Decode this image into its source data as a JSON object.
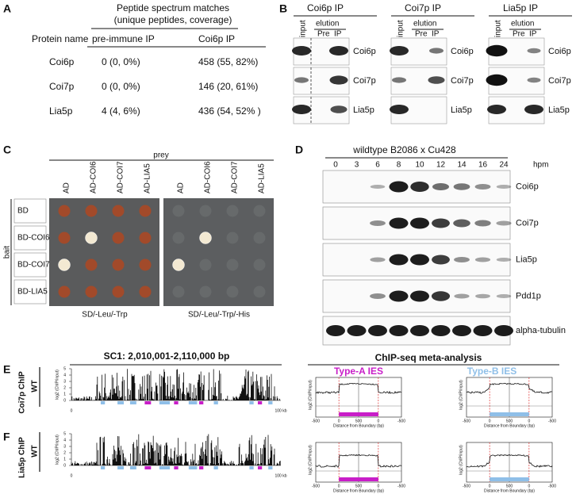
{
  "panel_a": {
    "label": "A",
    "header": "Peptide spectrum matches",
    "subheader": "(unique peptides, coverage)",
    "columns": [
      "Protein name",
      "pre-immune IP",
      "Coi6p IP"
    ],
    "rows": [
      [
        "Coi6p",
        "0 (0, 0%)",
        "458 (55, 82%)"
      ],
      [
        "Coi7p",
        "0 (0, 0%)",
        "146 (20, 61%)"
      ],
      [
        "Lia5p",
        "4 (4, 6%)",
        "436 (54, 52% )"
      ]
    ]
  },
  "panel_b": {
    "label": "B",
    "blots": [
      "Coi6p IP",
      "Coi7p IP",
      "Lia5p IP"
    ],
    "lanes": [
      "input",
      "elution",
      "Pre",
      "IP"
    ],
    "proteins": [
      "Coi6p",
      "Coi7p",
      "Lia5p"
    ]
  },
  "panel_c": {
    "label": "C",
    "prey": "prey",
    "bait": "bait",
    "columns": [
      "AD",
      "AD-COI6",
      "AD-COI7",
      "AD-LIA5"
    ],
    "rows": [
      "BD",
      "BD-COI6",
      "BD-COI7",
      "BD-LIA5"
    ],
    "plates": [
      "SD/-Leu/-Trp",
      "SD/-Leu/-Trp/-His"
    ]
  },
  "panel_d": {
    "label": "D",
    "title": "wildtype B2086 x Cu428",
    "hpm_label": "hpm",
    "timepoints": [
      0,
      3,
      6,
      8,
      10,
      12,
      14,
      16,
      24
    ],
    "proteins": [
      "Coi6p",
      "Coi7p",
      "Lia5p",
      "Pdd1p",
      "alpha-tubulin"
    ]
  },
  "panel_e": {
    "label": "E",
    "chip": "Coi7p ChIP",
    "strain": "WT"
  },
  "panel_f": {
    "label": "F",
    "chip": "Lia5p ChIP",
    "strain": "WT"
  },
  "genome_track": {
    "region": "SC1: 2,010,001-2,110,000 bp",
    "y_label": "log2 (ChIP/input)",
    "y_ticks": [
      0,
      1,
      2,
      3,
      4,
      5
    ],
    "x_start": "0",
    "x_end": "100 kb"
  },
  "meta": {
    "title": "ChIP-seq meta-analysis",
    "types": [
      "Type-A IES",
      "Type-B IES"
    ],
    "x_ticks": [
      -500,
      0,
      500,
      0,
      -500
    ],
    "x_label": "Distance from Boundary (bp)",
    "y_label": "log2 (ChIP/input)"
  }
}
